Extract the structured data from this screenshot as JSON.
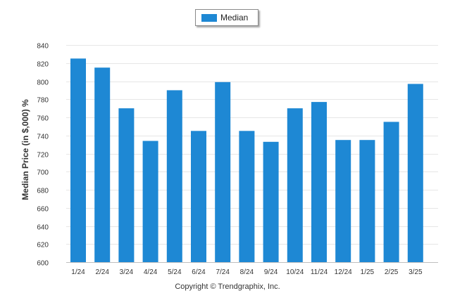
{
  "legend": {
    "label": "Median",
    "color": "#1e88d4"
  },
  "copyright": "Copyright © Trendgraphix, Inc.",
  "chart_data": {
    "type": "bar",
    "categories": [
      "1/24",
      "2/24",
      "3/24",
      "4/24",
      "5/24",
      "6/24",
      "7/24",
      "8/24",
      "9/24",
      "10/24",
      "11/24",
      "12/24",
      "1/25",
      "2/25",
      "3/25"
    ],
    "series": [
      {
        "name": "Median",
        "values": [
          825,
          815,
          770,
          734,
          790,
          745,
          799,
          745,
          733,
          770,
          777,
          735,
          735,
          755,
          797
        ],
        "color": "#1e88d4"
      }
    ],
    "ylabel": "Median Price (in $,000) %",
    "xlabel": "",
    "ylim": [
      600,
      840
    ],
    "yticks": [
      600,
      620,
      640,
      660,
      680,
      700,
      720,
      740,
      760,
      780,
      800,
      820,
      840
    ],
    "grid": true,
    "legend_position": "top-center"
  }
}
